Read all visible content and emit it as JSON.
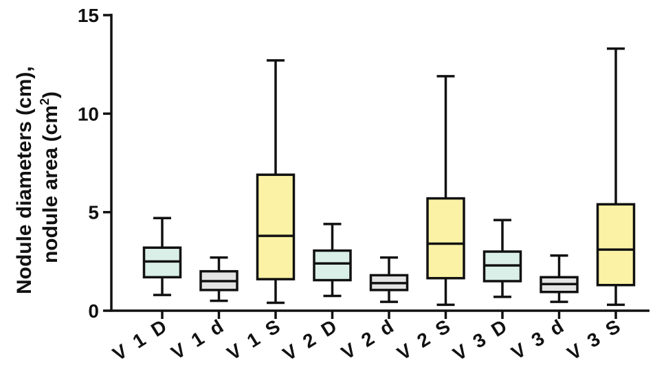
{
  "chart_data": {
    "type": "box",
    "ylabel": {
      "line1": "Nodule diameters (cm),",
      "line2_prefix": "nodule area (cm",
      "line2_sup": "2",
      "line2_suffix": ")"
    },
    "ylim": [
      0,
      15
    ],
    "yticks": [
      0,
      5,
      10,
      15
    ],
    "grid": false,
    "categories": [
      "V1D",
      "V1d",
      "V1S",
      "V2D",
      "V2d",
      "V2S",
      "V3D",
      "V3d",
      "V3S"
    ],
    "category_labels": [
      "V 1 D",
      "V 1 d",
      "V 1 S",
      "V 2 D",
      "V 2 d",
      "V 2 S",
      "V 3 D",
      "V 3 d",
      "V 3 S"
    ],
    "boxes": [
      {
        "min": 0.8,
        "q1": 1.7,
        "median": 2.5,
        "q3": 3.2,
        "max": 4.7,
        "color": "#d9efe8"
      },
      {
        "min": 0.5,
        "q1": 1.05,
        "median": 1.5,
        "q3": 2.0,
        "max": 2.7,
        "color": "#e3e3e3"
      },
      {
        "min": 0.4,
        "q1": 1.6,
        "median": 3.8,
        "q3": 6.9,
        "max": 12.7,
        "color": "#fbf2a5"
      },
      {
        "min": 0.75,
        "q1": 1.55,
        "median": 2.4,
        "q3": 3.05,
        "max": 4.4,
        "color": "#d9efe8"
      },
      {
        "min": 0.45,
        "q1": 1.05,
        "median": 1.4,
        "q3": 1.8,
        "max": 2.7,
        "color": "#e3e3e3"
      },
      {
        "min": 0.3,
        "q1": 1.65,
        "median": 3.4,
        "q3": 5.7,
        "max": 11.9,
        "color": "#fbf2a5"
      },
      {
        "min": 0.7,
        "q1": 1.5,
        "median": 2.3,
        "q3": 3.0,
        "max": 4.6,
        "color": "#d9efe8"
      },
      {
        "min": 0.45,
        "q1": 0.95,
        "median": 1.35,
        "q3": 1.7,
        "max": 2.8,
        "color": "#e3e3e3"
      },
      {
        "min": 0.3,
        "q1": 1.3,
        "median": 3.1,
        "q3": 5.4,
        "max": 13.3,
        "color": "#fbf2a5"
      }
    ]
  }
}
